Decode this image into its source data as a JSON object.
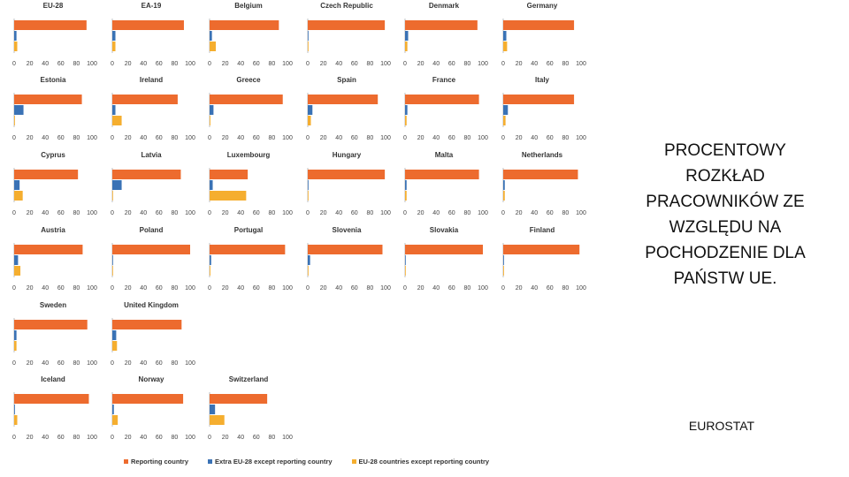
{
  "side_title": "PROCENTOWY ROZKŁAD PRACOWNIKÓW ZE WZGLĘDU NA POCHODZENIE DLA PAŃSTW UE.",
  "source": "EUROSTAT",
  "colors": {
    "reporting": "#ED6B2E",
    "extra_eu": "#3A72B5",
    "eu28": "#F5AE2F",
    "axis": "#BFBFBF",
    "tick_text": "#444444"
  },
  "chart_data": {
    "type": "bar",
    "orientation": "horizontal",
    "xlim": [
      0,
      100
    ],
    "x_ticks": [
      "0",
      "20",
      "40",
      "60",
      "80",
      "100"
    ],
    "series": [
      {
        "name": "Reporting country",
        "color": "#ED6B2E"
      },
      {
        "name": "Extra EU-28 except reporting country",
        "color": "#3A72B5"
      },
      {
        "name": "EU-28 countries except reporting country",
        "color": "#F5AE2F"
      }
    ],
    "legend_position": "bottom",
    "panels": [
      {
        "title": "EU-28",
        "values": [
          93,
          3,
          4
        ]
      },
      {
        "title": "EA-19",
        "values": [
          92,
          4,
          4
        ]
      },
      {
        "title": "Belgium",
        "values": [
          89,
          3,
          8
        ]
      },
      {
        "title": "Czech Republic",
        "values": [
          99,
          0.5,
          0.5
        ]
      },
      {
        "title": "Denmark",
        "values": [
          93,
          4,
          3
        ]
      },
      {
        "title": "Germany",
        "values": [
          91,
          4,
          5
        ]
      },
      {
        "title": "Estonia",
        "values": [
          87,
          12,
          1
        ]
      },
      {
        "title": "Ireland",
        "values": [
          84,
          4,
          12
        ]
      },
      {
        "title": "Greece",
        "values": [
          94,
          5,
          1
        ]
      },
      {
        "title": "Spain",
        "values": [
          90,
          6,
          4
        ]
      },
      {
        "title": "France",
        "values": [
          95,
          3,
          2
        ]
      },
      {
        "title": "Italy",
        "values": [
          91,
          6,
          3
        ]
      },
      {
        "title": "Cyprus",
        "values": [
          82,
          7,
          11
        ]
      },
      {
        "title": "Latvia",
        "values": [
          88,
          12,
          0.5
        ]
      },
      {
        "title": "Luxembourg",
        "values": [
          49,
          4,
          47
        ]
      },
      {
        "title": "Hungary",
        "values": [
          99,
          0.5,
          0.5
        ]
      },
      {
        "title": "Malta",
        "values": [
          95,
          2,
          2
        ]
      },
      {
        "title": "Netherlands",
        "values": [
          96,
          2,
          2
        ]
      },
      {
        "title": "Austria",
        "values": [
          88,
          5,
          8
        ]
      },
      {
        "title": "Poland",
        "values": [
          100,
          0.3,
          0.3
        ]
      },
      {
        "title": "Portugal",
        "values": [
          97,
          2,
          1
        ]
      },
      {
        "title": "Slovenia",
        "values": [
          96,
          3,
          0.5
        ]
      },
      {
        "title": "Slovakia",
        "values": [
          100,
          0.3,
          0.3
        ]
      },
      {
        "title": "Finland",
        "values": [
          98,
          1,
          1
        ]
      },
      {
        "title": "Sweden",
        "values": [
          94,
          3,
          3
        ]
      },
      {
        "title": "United Kingdom",
        "values": [
          89,
          5,
          6
        ]
      },
      {
        "title": "Iceland",
        "values": [
          96,
          1,
          4
        ]
      },
      {
        "title": "Norway",
        "values": [
          91,
          2,
          7
        ]
      },
      {
        "title": "Switzerland",
        "values": [
          74,
          7,
          19
        ]
      }
    ]
  }
}
